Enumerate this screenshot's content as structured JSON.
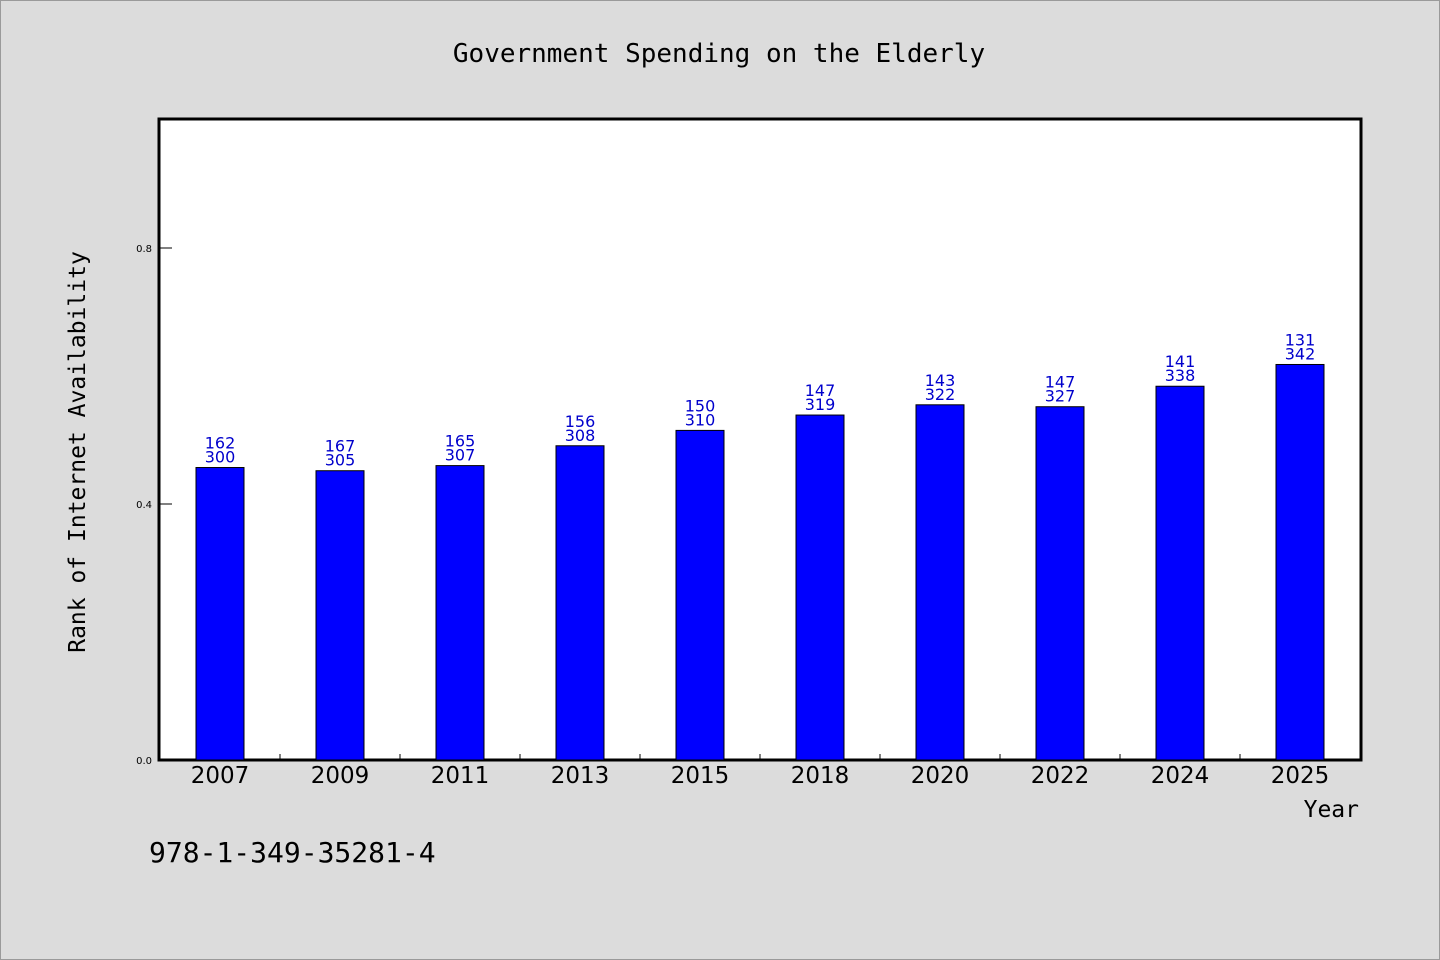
{
  "chart_data": {
    "type": "bar",
    "title": "Government Spending on the Elderly",
    "xlabel": "Year",
    "ylabel": "Rank of Internet Availability",
    "categories": [
      "2007",
      "2009",
      "2011",
      "2013",
      "2015",
      "2018",
      "2020",
      "2022",
      "2024",
      "2025"
    ],
    "values": [
      0.457,
      0.452,
      0.46,
      0.491,
      0.515,
      0.539,
      0.555,
      0.552,
      0.584,
      0.618
    ],
    "label_top": [
      "162",
      "167",
      "165",
      "156",
      "150",
      "147",
      "143",
      "147",
      "141",
      "131"
    ],
    "label_bottom": [
      "300",
      "305",
      "307",
      "308",
      "310",
      "319",
      "322",
      "327",
      "338",
      "342"
    ],
    "yticks": [
      "0.0",
      "0.4",
      "0.8"
    ],
    "ylim": [
      0,
      1.0
    ],
    "grid": false,
    "bar_color": "#0000ff",
    "label_color": "#0000cc"
  },
  "footer": {
    "text": "978-1-349-35281-4"
  }
}
